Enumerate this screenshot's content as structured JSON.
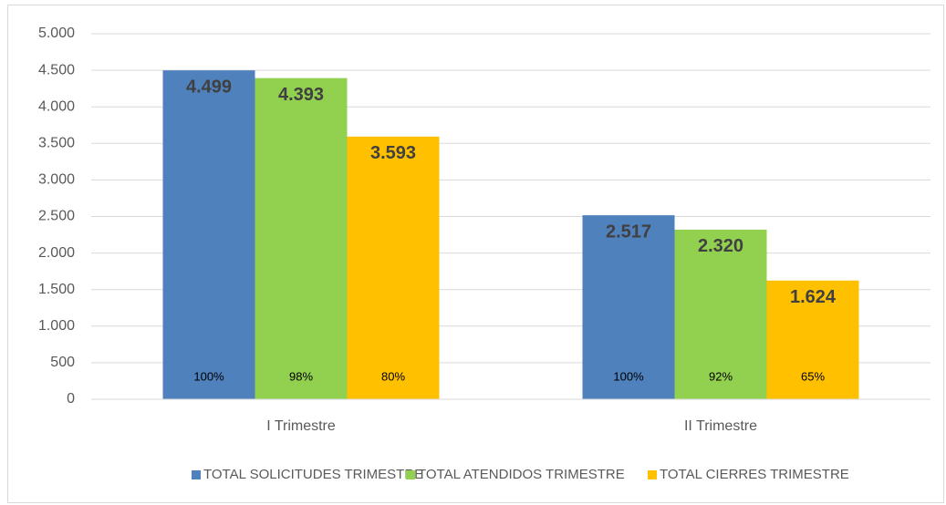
{
  "chart_data": {
    "type": "bar",
    "categories": [
      "I Trimestre",
      "II Trimestre"
    ],
    "series": [
      {
        "name": "TOTAL SOLICITUDES TRIMESTRE",
        "color": "#4f81bd",
        "values": [
          4499,
          2517
        ],
        "value_labels": [
          "4.499",
          "2.517"
        ],
        "share_labels": [
          "100%",
          "100%"
        ]
      },
      {
        "name": "TOTAL ATENDIDOS TRIMESTRE",
        "color": "#92d050",
        "values": [
          4393,
          2320
        ],
        "value_labels": [
          "4.393",
          "2.320"
        ],
        "share_labels": [
          "98%",
          "92%"
        ]
      },
      {
        "name": "TOTAL CIERRES TRIMESTRE",
        "color": "#ffc000",
        "values": [
          3593,
          1624
        ],
        "value_labels": [
          "3.593",
          "1.624"
        ],
        "share_labels": [
          "80%",
          "65%"
        ]
      }
    ],
    "ylim": [
      0,
      5000
    ],
    "yticks": [
      0,
      500,
      {
        "value": 1000,
        "label": "1.000"
      },
      {
        "value": 1500,
        "label": "1.500"
      },
      {
        "value": 2000,
        "label": "2.000"
      },
      {
        "value": 2500,
        "label": "2.500"
      },
      {
        "value": 3000,
        "label": "3.000"
      },
      {
        "value": 3500,
        "label": "3.500"
      },
      {
        "value": 4000,
        "label": "4.000"
      },
      {
        "value": 4500,
        "label": "4.500"
      },
      {
        "value": 5000,
        "label": "5.000"
      }
    ],
    "grid": true,
    "legend": "bottom"
  }
}
